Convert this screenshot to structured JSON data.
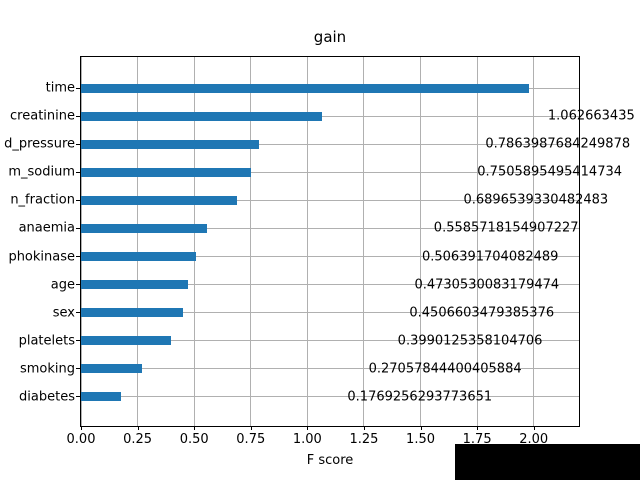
{
  "chart_data": {
    "type": "bar",
    "orientation": "horizontal",
    "title": "gain",
    "xlabel": "F score",
    "ylabel": "",
    "categories": [
      "time",
      "creatinine",
      "d_pressure",
      "m_sodium",
      "n_fraction",
      "anaemia",
      "phokinase",
      "age",
      "sex",
      "platelets",
      "smoking",
      "diabetes"
    ],
    "values": [
      1.98,
      1.062663435,
      0.7863987684249878,
      0.7505895495414734,
      0.6896539330482483,
      0.5585718154907227,
      0.506391704082489,
      0.4730530083179474,
      0.4506603479385376,
      0.3990125358104706,
      0.27057844400405884,
      0.1769256293773651
    ],
    "value_labels": [
      "",
      "1.062663435",
      "0.7863987684249878",
      "0.7505895495414734",
      "0.6896539330482483",
      "0.5585718154907227",
      "0.506391704082489",
      "0.4730530083179474",
      "0.4506603479385376",
      "0.3990125358104706",
      "0.27057844400405884",
      "0.1769256293773651"
    ],
    "value_label_offset": 1,
    "x_tick_labels": [
      "0.00",
      "0.25",
      "0.50",
      "0.75",
      "1.00",
      "1.25",
      "1.50",
      "1.75",
      "2.00"
    ],
    "x_tick_values": [
      0,
      0.25,
      0.5,
      0.75,
      1.0,
      1.25,
      1.5,
      1.75,
      2.0
    ],
    "xlim": [
      0,
      2.2
    ],
    "grid": true,
    "legend": false,
    "bar_color": "#1f77b4",
    "grid_color": "#b0b0b0"
  }
}
